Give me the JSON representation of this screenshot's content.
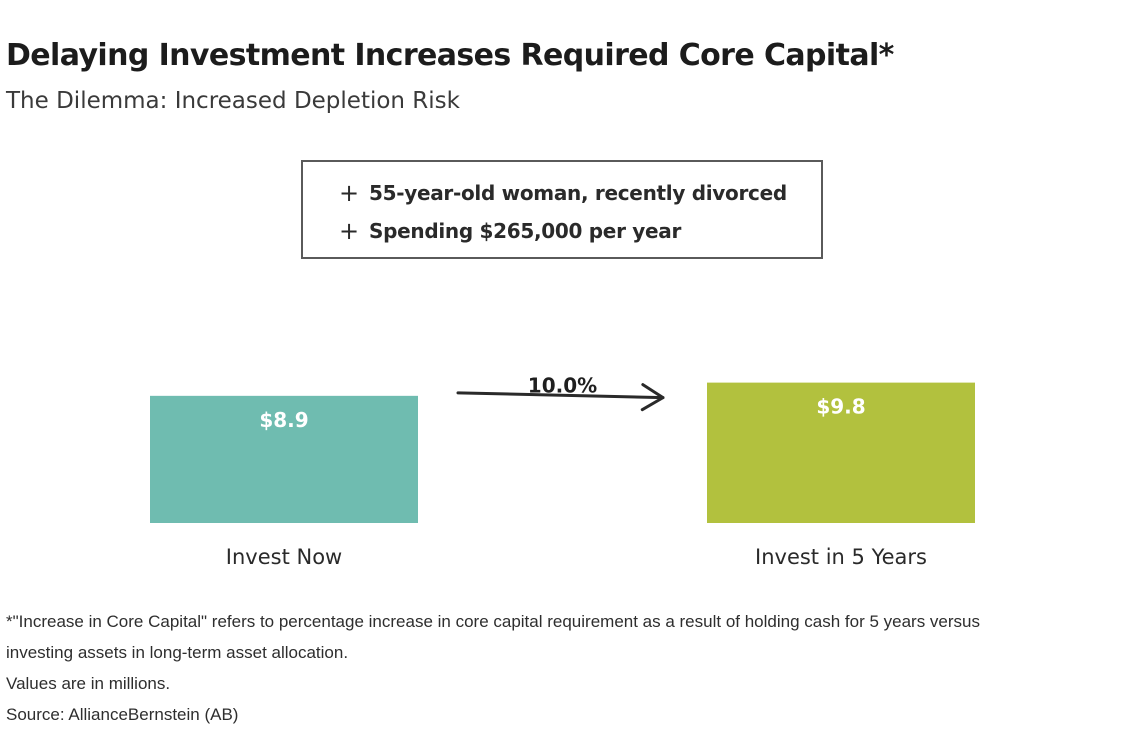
{
  "header": {
    "title": "Delaying Investment Increases Required Core Capital*",
    "subtitle": "The Dilemma: Increased Depletion Risk"
  },
  "info_box": {
    "bullet_icon": "plus-icon",
    "items": [
      "55-year-old woman, recently divorced",
      "Spending $265,000 per year"
    ]
  },
  "chart_data": {
    "type": "bar",
    "categories": [
      "Invest Now",
      "Invest in 5 Years"
    ],
    "values": [
      8.9,
      9.8
    ],
    "value_labels": [
      "$8.9",
      "$9.8"
    ],
    "colors": [
      "#6fbcb0",
      "#b2c13e"
    ],
    "annotation": {
      "text": "10.0%",
      "from": "Invest Now",
      "to": "Invest in 5 Years"
    },
    "ylim": [
      0,
      10.5
    ],
    "grid": false,
    "title": "",
    "xlabel": "",
    "ylabel": ""
  },
  "footnotes": {
    "note_line1": "*\"Increase in Core Capital\" refers to percentage increase in core capital requirement as a result of holding cash for 5 years versus",
    "note_line2": "investing assets in long-term asset allocation.",
    "values_note": "Values are in millions.",
    "source": "Source: AllianceBernstein (AB)"
  }
}
